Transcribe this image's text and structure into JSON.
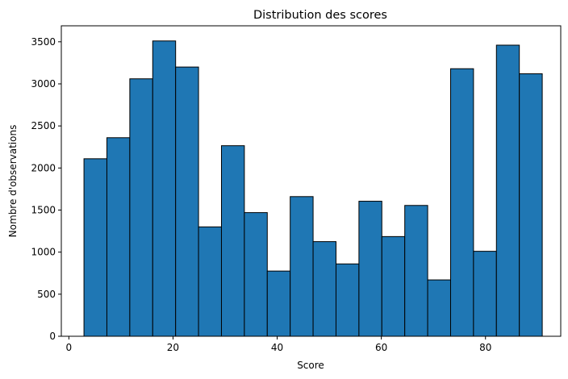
{
  "chart_data": {
    "type": "bar",
    "title": "Distribution des scores",
    "xlabel": "Score",
    "ylabel": "Nombre d'observations",
    "xlim": [
      -1.45,
      94.45
    ],
    "ylim": [
      0,
      3690
    ],
    "xticks": [
      0,
      20,
      40,
      60,
      80
    ],
    "yticks": [
      0,
      500,
      1000,
      1500,
      2000,
      2500,
      3000,
      3500
    ],
    "bar_color": "#1f77b4",
    "edge_color": "#000000",
    "bins": [
      {
        "x0": 2.9,
        "x1": 7.3,
        "count": 2110
      },
      {
        "x0": 7.3,
        "x1": 11.7,
        "count": 2360
      },
      {
        "x0": 11.7,
        "x1": 16.1,
        "count": 3060
      },
      {
        "x0": 16.1,
        "x1": 20.5,
        "count": 3510
      },
      {
        "x0": 20.5,
        "x1": 24.9,
        "count": 3200
      },
      {
        "x0": 24.9,
        "x1": 29.3,
        "count": 1300
      },
      {
        "x0": 29.3,
        "x1": 33.7,
        "count": 2265
      },
      {
        "x0": 33.7,
        "x1": 38.1,
        "count": 1470
      },
      {
        "x0": 38.1,
        "x1": 42.5,
        "count": 775
      },
      {
        "x0": 42.5,
        "x1": 46.9,
        "count": 1660
      },
      {
        "x0": 46.9,
        "x1": 51.3,
        "count": 1125
      },
      {
        "x0": 51.3,
        "x1": 55.7,
        "count": 860
      },
      {
        "x0": 55.7,
        "x1": 60.1,
        "count": 1605
      },
      {
        "x0": 60.1,
        "x1": 64.5,
        "count": 1185
      },
      {
        "x0": 64.5,
        "x1": 68.9,
        "count": 1555
      },
      {
        "x0": 68.9,
        "x1": 73.3,
        "count": 670
      },
      {
        "x0": 73.3,
        "x1": 77.7,
        "count": 3180
      },
      {
        "x0": 77.7,
        "x1": 82.1,
        "count": 1010
      },
      {
        "x0": 82.1,
        "x1": 86.5,
        "count": 3460
      },
      {
        "x0": 86.5,
        "x1": 90.9,
        "count": 3120
      }
    ]
  }
}
